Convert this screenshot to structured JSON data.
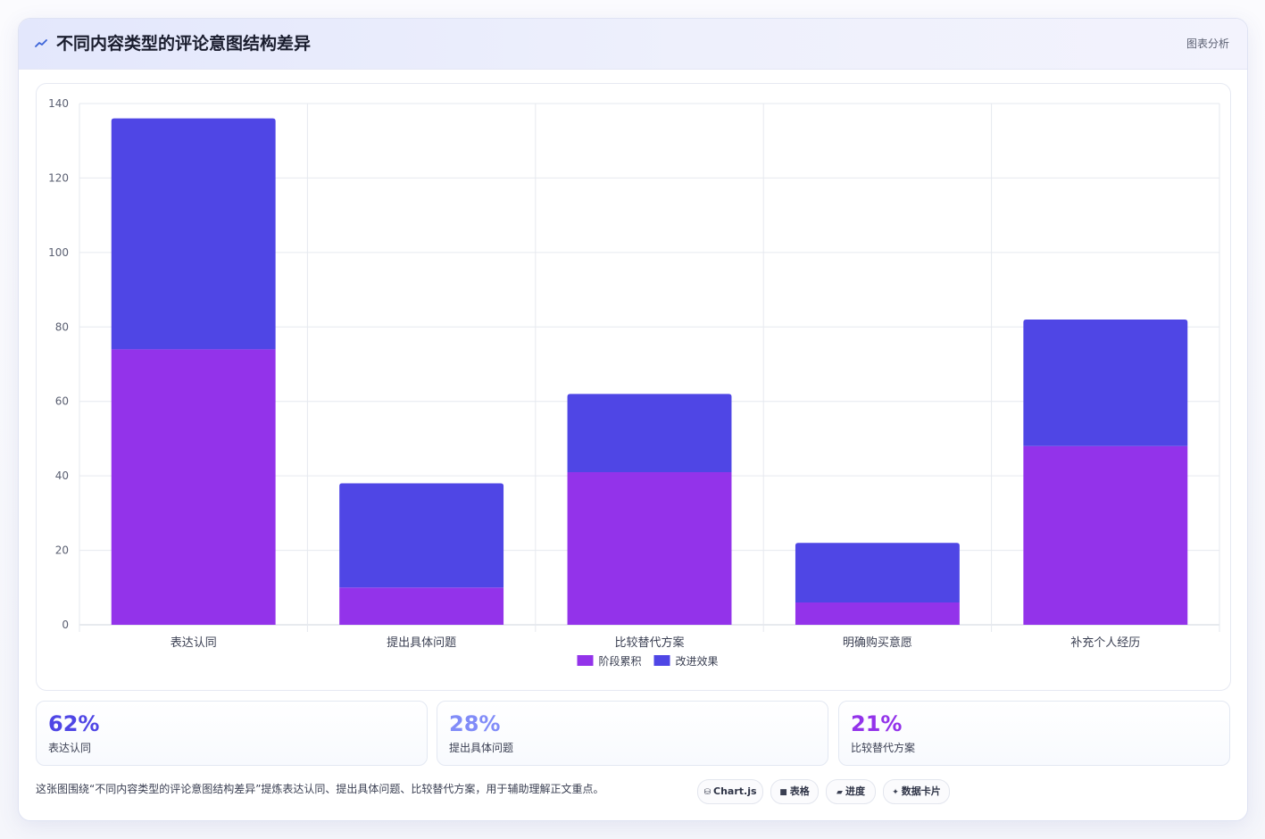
{
  "header": {
    "icon": "trend-line-icon",
    "title": "不同内容类型的评论意图结构差异",
    "tag": "图表分析"
  },
  "chart_data": {
    "type": "bar",
    "stacked": true,
    "categories": [
      "表达认同",
      "提出具体问题",
      "比较替代方案",
      "明确购买意愿",
      "补充个人经历"
    ],
    "series": [
      {
        "name": "阶段累积",
        "color": "#9333ea",
        "values": [
          74,
          10,
          41,
          6,
          48
        ]
      },
      {
        "name": "改进效果",
        "color": "#4f46e5",
        "values": [
          62,
          28,
          21,
          16,
          34
        ]
      }
    ],
    "ylim": [
      0,
      140
    ],
    "yticks": [
      0,
      20,
      40,
      60,
      80,
      100,
      120,
      140
    ],
    "grid": true,
    "legend": "bottom"
  },
  "stats": [
    {
      "value": "62%",
      "label": "表达认同",
      "color": "#4f46e5"
    },
    {
      "value": "28%",
      "label": "提出具体问题",
      "color": "#818cf8"
    },
    {
      "value": "21%",
      "label": "比较替代方案",
      "color": "#9333ea"
    }
  ],
  "footnote": "这张图围绕“不同内容类型的评论意图结构差异”提炼表达认同、提出具体问题、比较替代方案，用于辅助理解正文重点。",
  "pills": [
    {
      "icon": "database-icon",
      "glyph": "⛁",
      "label": "Chart.js"
    },
    {
      "icon": "table-icon",
      "glyph": "■",
      "label": "表格"
    },
    {
      "icon": "progress-icon",
      "glyph": "▰",
      "label": "进度"
    },
    {
      "icon": "sparkle-icon",
      "glyph": "✦",
      "label": "数据卡片"
    }
  ]
}
